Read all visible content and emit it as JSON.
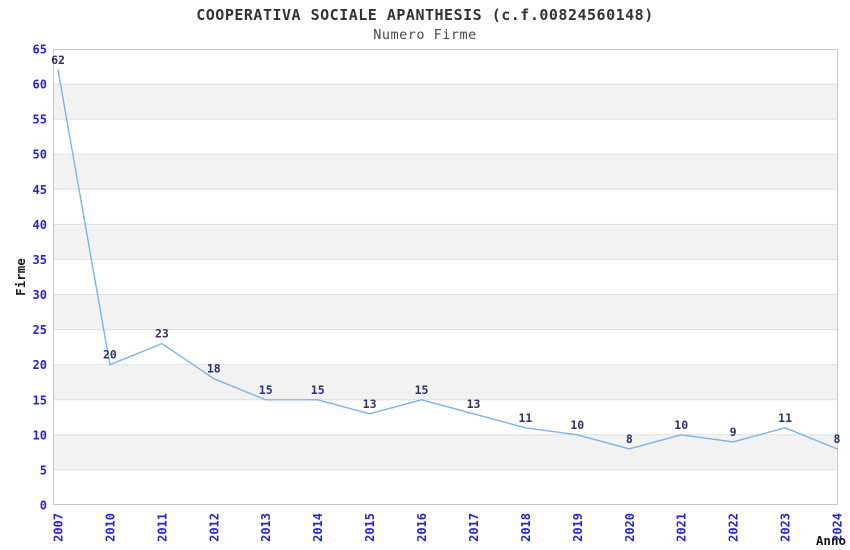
{
  "header": {
    "title": "COOPERATIVA SOCIALE APANTHESIS (c.f.00824560148)",
    "subtitle": "Numero Firme"
  },
  "chart_data": {
    "type": "line",
    "title": "COOPERATIVA SOCIALE APANTHESIS (c.f.00824560148)",
    "subtitle": "Numero Firme",
    "xlabel": "Anno",
    "ylabel": "Firme",
    "categories": [
      "2007",
      "2010",
      "2011",
      "2012",
      "2013",
      "2014",
      "2015",
      "2016",
      "2017",
      "2018",
      "2019",
      "2020",
      "2021",
      "2022",
      "2023",
      "2024"
    ],
    "values": [
      62,
      20,
      23,
      18,
      15,
      15,
      13,
      15,
      13,
      11,
      10,
      8,
      10,
      9,
      11,
      8
    ],
    "ylim": [
      0,
      65
    ],
    "ytick_step": 5,
    "ytick_labels": [
      "0",
      "5",
      "10",
      "15",
      "20",
      "25",
      "30",
      "35",
      "40",
      "45",
      "50",
      "55",
      "60",
      "65"
    ],
    "point_labels_visible": true,
    "grid": "horizontal-bands",
    "legend": "none",
    "colors": {
      "line": "#7db3e6",
      "point_label": "#30306e",
      "tick_label": "#2424d9",
      "axis_label": "#1a1a1a",
      "title": "#333333",
      "subtitle": "#4a4a4a",
      "band": "#f2f2f2",
      "grid_line": "#e0e0e0",
      "border": "#c9c9c9",
      "background": "#ffffff"
    }
  }
}
